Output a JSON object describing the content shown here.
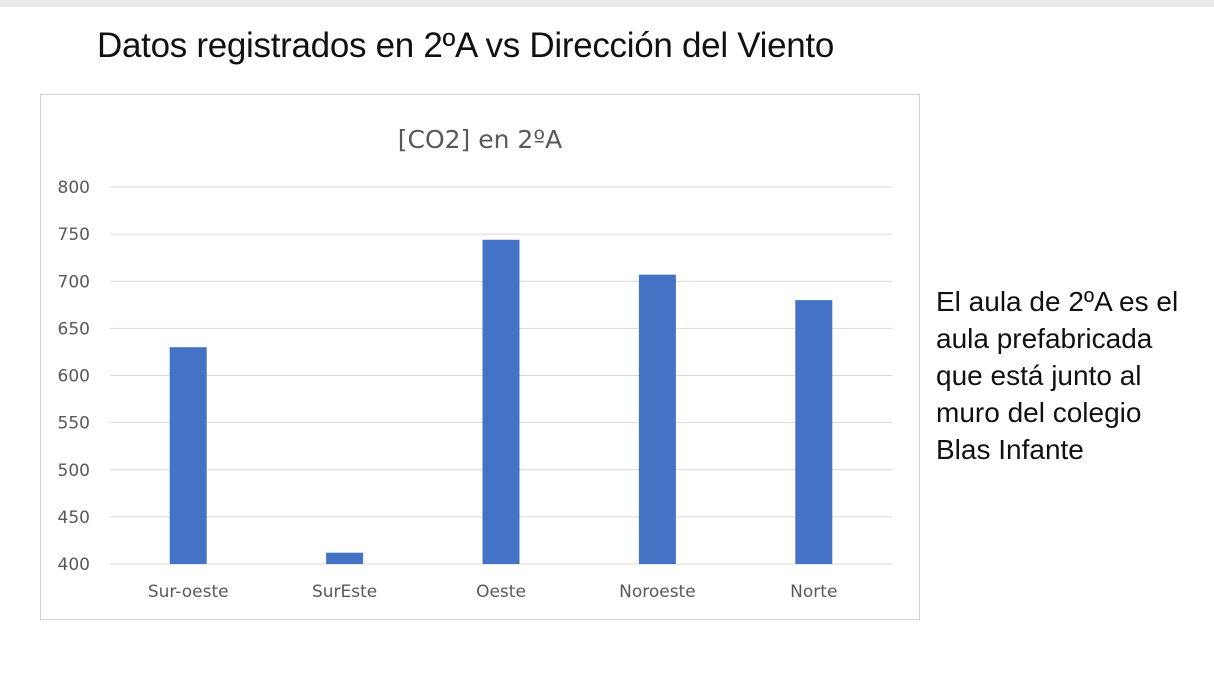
{
  "slide": {
    "title": "Datos registrados en 2ºA vs Dirección del Viento",
    "note": "El aula de 2ºA es el\naula prefabricada\nque está junto al\nmuro del colegio\nBlas Infante"
  },
  "chart_data": {
    "type": "bar",
    "title": "[CO2] en 2ºA",
    "xlabel": "",
    "ylabel": "",
    "categories": [
      "Sur-oeste",
      "SurEste",
      "Oeste",
      "Noroeste",
      "Norte"
    ],
    "values": [
      630,
      412,
      744,
      707,
      680
    ],
    "ylim": [
      400,
      800
    ],
    "yticks": [
      400,
      450,
      500,
      550,
      600,
      650,
      700,
      750,
      800
    ],
    "grid": true,
    "legend": "none",
    "colors": {
      "bar": "#4472c4",
      "grid": "#d9d9d9",
      "text": "#595959",
      "title": "#595959"
    }
  }
}
